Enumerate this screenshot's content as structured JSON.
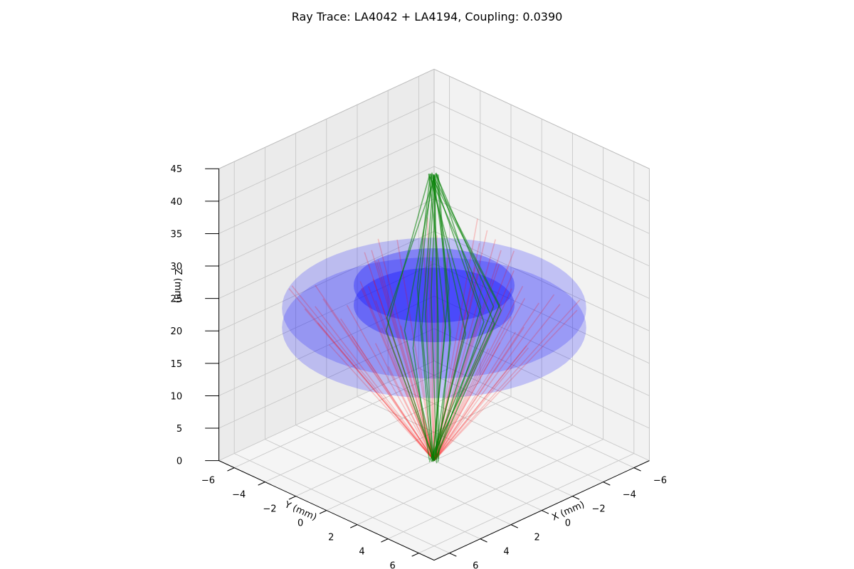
{
  "chart_data": {
    "type": "scatter",
    "subtype": "3d-ray-trace",
    "title": "Ray Trace: LA4042 + LA4194, Coupling: 0.0390",
    "xlabel": "X (mm)",
    "ylabel": "Y (mm)",
    "zlabel": "Z (mm)",
    "xlim": [
      -7,
      7
    ],
    "ylim": [
      -7,
      7
    ],
    "zlim": [
      0,
      45
    ],
    "x_ticks": [
      "−6",
      "−4",
      "−2",
      "0",
      "2",
      "4",
      "6"
    ],
    "y_ticks": [
      "−6",
      "−4",
      "−2",
      "0",
      "2",
      "4",
      "6"
    ],
    "z_ticks": [
      "0",
      "5",
      "10",
      "15",
      "20",
      "25",
      "30",
      "35",
      "40",
      "45"
    ],
    "x_tick_values": [
      -6,
      -4,
      -2,
      0,
      2,
      4,
      6
    ],
    "y_tick_values": [
      -6,
      -4,
      -2,
      0,
      2,
      4,
      6
    ],
    "z_tick_values": [
      0,
      5,
      10,
      15,
      20,
      25,
      30,
      35,
      40,
      45
    ],
    "grid": true,
    "view": {
      "elev_deg": 20,
      "azim_deg": 45
    },
    "lenses": [
      {
        "z": 22,
        "radius": 7,
        "color": "#0000ff",
        "alpha": 0.2
      },
      {
        "z": 25.5,
        "radius": 3.7,
        "color": "#0000ff",
        "alpha": 0.3
      }
    ],
    "series": [
      {
        "color": "#ff0000",
        "alpha": 0.2,
        "source_point": [
          0,
          0,
          0
        ],
        "end_z": 26,
        "end_radius_range": [
          2.5,
          7.2
        ],
        "ray_count": 60
      },
      {
        "color": "#008000",
        "alpha": 0.55,
        "start_z": 0,
        "start_radius_range": [
          0,
          0.3
        ],
        "focus_point": [
          0,
          0,
          22
        ],
        "focus_radius": 3.3,
        "end_z": 44,
        "end_radius_range": [
          0,
          0.3
        ],
        "ray_count": 22
      }
    ]
  }
}
